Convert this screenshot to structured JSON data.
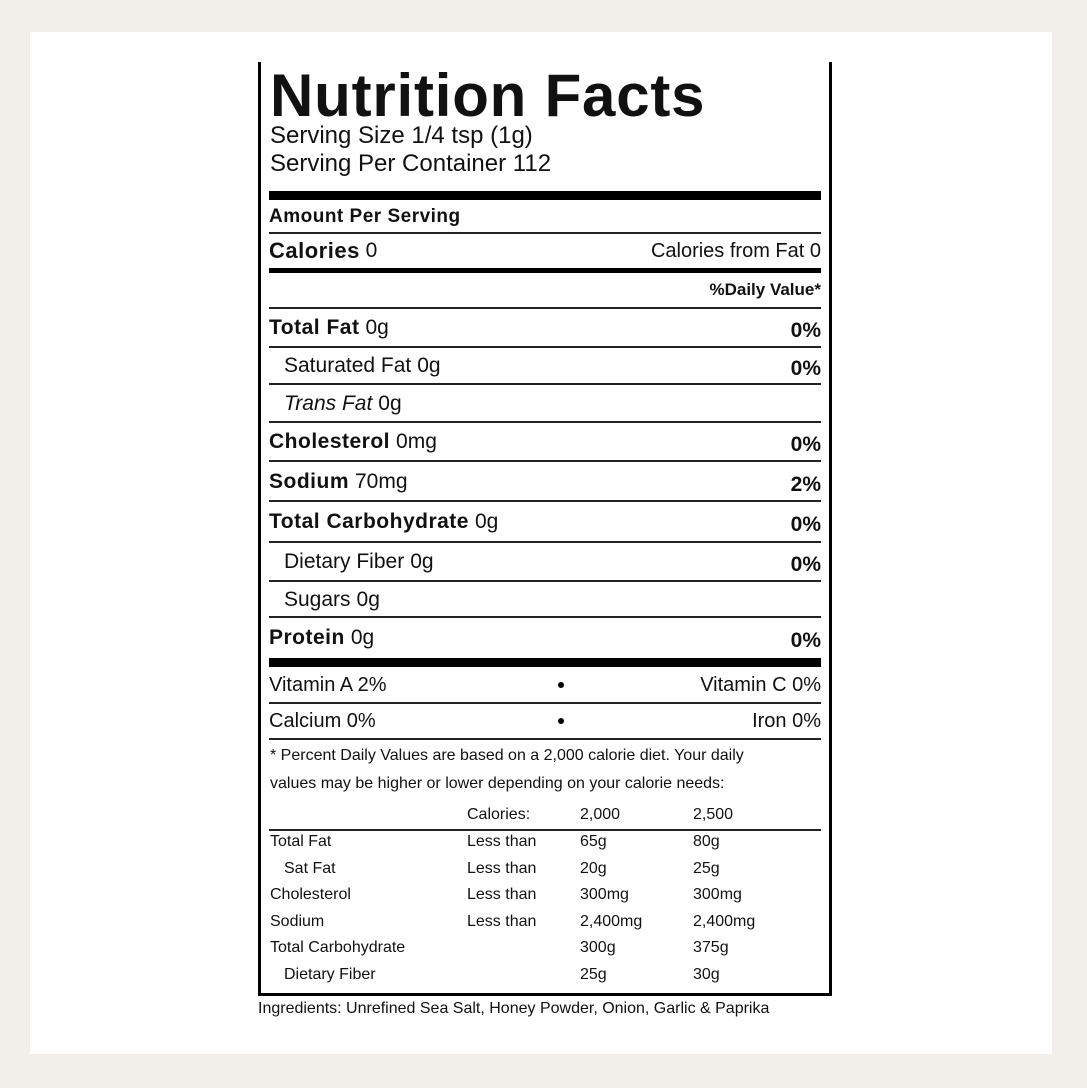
{
  "title": "Nutrition Facts",
  "serving_size": "Serving Size 1/4 tsp (1g)",
  "servings_per_container": "Serving Per Container 112",
  "amount_per_serving": "Amount Per Serving",
  "calories": {
    "label": "Calories",
    "value": "0",
    "from_fat": "Calories from Fat 0"
  },
  "daily_value_header": "%Daily Value*",
  "nutrients": [
    {
      "name": "Total Fat",
      "amount": "0g",
      "dv": "0%"
    },
    {
      "name": "Saturated Fat",
      "amount": "0g",
      "dv": "0%"
    },
    {
      "name": "Trans Fat",
      "amount": "0g"
    },
    {
      "name": "Cholesterol",
      "amount": "0mg",
      "dv": "0%"
    },
    {
      "name": "Sodium",
      "amount": "70mg",
      "dv": "2%"
    },
    {
      "name": "Total Carbohydrate",
      "amount": "0g",
      "dv": "0%"
    },
    {
      "name": "Dietary Fiber",
      "amount": "0g",
      "dv": "0%"
    },
    {
      "name": "Sugars",
      "amount": "0g"
    },
    {
      "name": "Protein",
      "amount": "0g",
      "dv": "0%"
    }
  ],
  "vitamins": [
    [
      "Vitamin A 2%",
      "Vitamin C 0%"
    ],
    [
      "Calcium 0%",
      "Iron 0%"
    ]
  ],
  "footnote": "* Percent Daily Values are based on a 2,000 calorie diet. Your daily values may be higher or lower depending on your calorie needs:",
  "reference_table": {
    "header": {
      "label": "Calories:",
      "columns": [
        "2,000",
        "2,500"
      ]
    },
    "rows": [
      {
        "nutrient": "Total Fat",
        "qualifier": "Less than",
        "values": [
          "65g",
          "80g"
        ]
      },
      {
        "nutrient": "Sat Fat",
        "qualifier": "Less than",
        "values": [
          "20g",
          "25g"
        ]
      },
      {
        "nutrient": "Cholesterol",
        "qualifier": "Less than",
        "values": [
          "300mg",
          "300mg"
        ]
      },
      {
        "nutrient": "Sodium",
        "qualifier": "Less than",
        "values": [
          "2,400mg",
          "2,400mg"
        ]
      },
      {
        "nutrient": "Total Carbohydrate",
        "values": [
          "300g",
          "375g"
        ]
      },
      {
        "nutrient": "Dietary Fiber",
        "values": [
          "25g",
          "30g"
        ]
      }
    ]
  },
  "ingredients": "Ingredients: Unrefined Sea Salt, Honey Powder, Onion, Garlic & Paprika"
}
